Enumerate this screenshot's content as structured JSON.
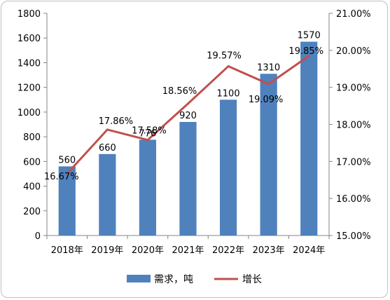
{
  "chart_data": {
    "type": "bar+line",
    "categories": [
      "2018年",
      "2019年",
      "2020年",
      "2021年",
      "2022年",
      "2023年",
      "2024年"
    ],
    "series": [
      {
        "name": "需求，吨",
        "type": "bar",
        "axis": "left",
        "color": "#4f81bd",
        "values": [
          560,
          660,
          776,
          920,
          1100,
          1310,
          1570
        ],
        "labels": [
          "560",
          "660",
          "776",
          "920",
          "1100",
          "1310",
          "1570"
        ]
      },
      {
        "name": "增长",
        "type": "line",
        "axis": "right",
        "color": "#c0504d",
        "values": [
          16.67,
          17.86,
          17.58,
          18.56,
          19.57,
          19.09,
          19.85
        ],
        "labels": [
          "16.67%",
          "17.86%",
          "17.58%",
          "18.56%",
          "19.57%",
          "19.09%",
          "19.85%"
        ]
      }
    ],
    "y_left": {
      "min": 0,
      "max": 1800,
      "ticks": [
        "0",
        "200",
        "400",
        "600",
        "800",
        "1000",
        "1200",
        "1400",
        "1600",
        "1800"
      ]
    },
    "y_right": {
      "min": 15,
      "max": 21,
      "ticks": [
        "15.00%",
        "16.00%",
        "17.00%",
        "18.00%",
        "19.00%",
        "20.00%",
        "21.00%"
      ]
    },
    "grid": false,
    "legend_position": "bottom"
  }
}
